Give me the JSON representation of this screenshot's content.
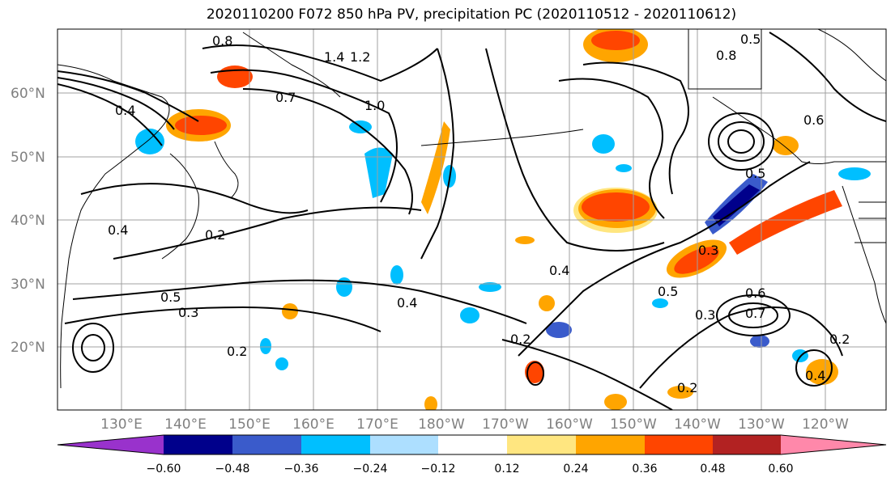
{
  "title": "2020110200 F072 850 hPa PV, precipitation PC (2020110512 - 2020110612)",
  "latitude_labels": [
    "60°N",
    "50°N",
    "40°N",
    "30°N",
    "20°N"
  ],
  "longitude_labels": [
    "130°E",
    "140°E",
    "150°E",
    "160°E",
    "170°E",
    "180°W",
    "170°W",
    "160°W",
    "150°W",
    "140°W",
    "130°W",
    "120°W"
  ],
  "colorbar": {
    "tick_labels": [
      "−0.60",
      "−0.48",
      "−0.36",
      "−0.24",
      "−0.12",
      "0.12",
      "0.24",
      "0.36",
      "0.48",
      "0.60"
    ],
    "colors": [
      "#9932CC",
      "#00008B",
      "#3A5BCB",
      "#00BFFF",
      "#ADDFFF",
      "#FFFFFF",
      "#FFE680",
      "#FFA500",
      "#FF4500",
      "#B22222",
      "#FF88AA"
    ]
  },
  "contour_labels": [
    "0.4",
    "0.8",
    "1.4",
    "1.2",
    "1.0",
    "0.7",
    "0.2",
    "0.4",
    "0.5",
    "0.3",
    "0.2",
    "0.4",
    "0.4",
    "0.2",
    "0.3",
    "0.5",
    "0.5",
    "0.6",
    "0.7",
    "0.6",
    "0.8",
    "0.5",
    "0.3",
    "0.2",
    "0.4",
    "0.2"
  ]
}
